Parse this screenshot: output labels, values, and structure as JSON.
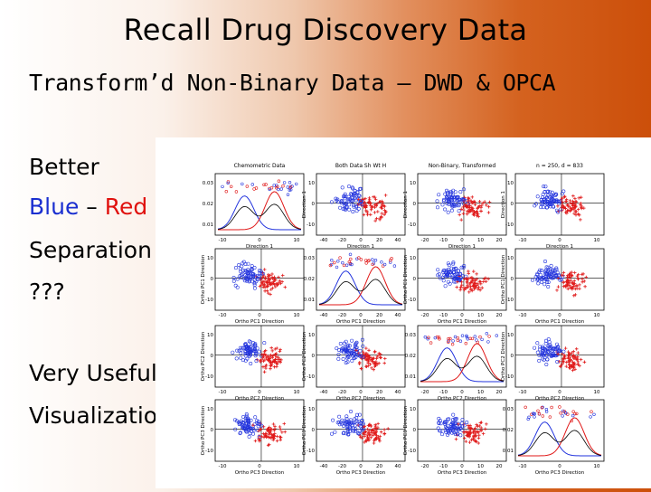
{
  "slide": {
    "title": "Recall Drug Discovery Data",
    "subtitle": "Transform’d Non-Binary Data – DWD & OPCA",
    "side_text": {
      "line1": "Better",
      "blue_word": "Blue",
      "dash": " – ",
      "red_word": "Red",
      "line3": "Separation",
      "line4": "???",
      "line5": "Very Useful",
      "line6": "Visualization"
    }
  },
  "figure": {
    "column_titles": [
      "Chemometric Data",
      "Both Data Sh Wt H",
      "Non-Binary, Transformed",
      "n = 250, d = 833"
    ],
    "row_xlabels": [
      "Direction 1",
      "Ortho PC1 Direction",
      "Ortho PC2 Direction",
      "Ortho PC3 Direction"
    ],
    "row_ylabels": [
      "Direction 1",
      "Ortho PC1 Direction",
      "Ortho PC2 Direction",
      "Ortho PC3 Direction"
    ],
    "tick_labels": {
      "x_a": [
        "-10",
        "0",
        "10"
      ],
      "x_b": [
        "-40",
        "-20",
        "0",
        "20",
        "40"
      ],
      "x_c": [
        "-20",
        "-10",
        "0",
        "10",
        "20"
      ],
      "y_a": [
        "10",
        "0",
        "-10"
      ],
      "y_b": [
        "0.03",
        "0.02",
        "0.01"
      ]
    },
    "colors": {
      "blue": "#2233dd",
      "red": "#e01818"
    }
  }
}
